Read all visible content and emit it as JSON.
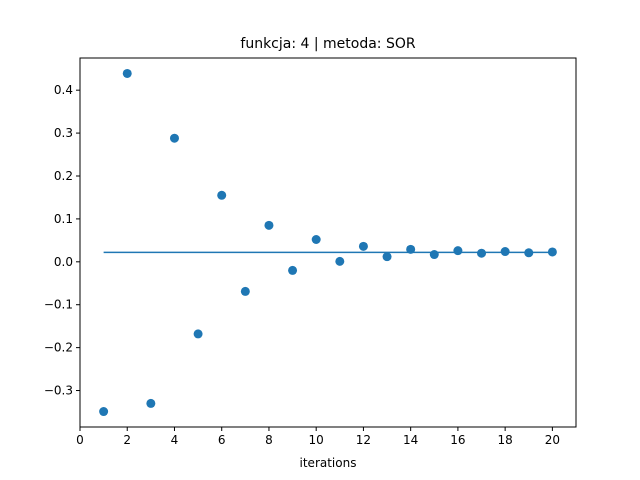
{
  "chart_data": {
    "type": "scatter",
    "title": "funkcja: 4 | metoda: SOR",
    "xlabel": "iterations",
    "ylabel": "",
    "xlim": [
      0,
      21
    ],
    "ylim": [
      -0.385,
      0.475
    ],
    "xticks": [
      0,
      2,
      4,
      6,
      8,
      10,
      12,
      14,
      16,
      18,
      20
    ],
    "xtick_labels": [
      "0",
      "2",
      "4",
      "6",
      "8",
      "10",
      "12",
      "14",
      "16",
      "18",
      "20"
    ],
    "yticks": [
      -0.3,
      -0.2,
      -0.1,
      0.0,
      0.1,
      0.2,
      0.3,
      0.4
    ],
    "ytick_labels": [
      "−0.3",
      "−0.2",
      "−0.1",
      "0.0",
      "0.1",
      "0.2",
      "0.3",
      "0.4"
    ],
    "grid": false,
    "series": [
      {
        "type": "scatter",
        "color": "#1f77b4",
        "x": [
          1,
          2,
          3,
          4,
          5,
          6,
          7,
          8,
          9,
          10,
          11,
          12,
          13,
          14,
          15,
          16,
          17,
          18,
          19,
          20
        ],
        "y": [
          -0.349,
          0.439,
          -0.33,
          0.288,
          -0.168,
          0.155,
          -0.069,
          0.085,
          -0.02,
          0.052,
          0.001,
          0.036,
          0.012,
          0.029,
          0.017,
          0.026,
          0.02,
          0.024,
          0.021,
          0.023
        ]
      },
      {
        "type": "line",
        "color": "#1f77b4",
        "x": [
          1,
          20
        ],
        "y": [
          0.022,
          0.022
        ]
      }
    ]
  }
}
